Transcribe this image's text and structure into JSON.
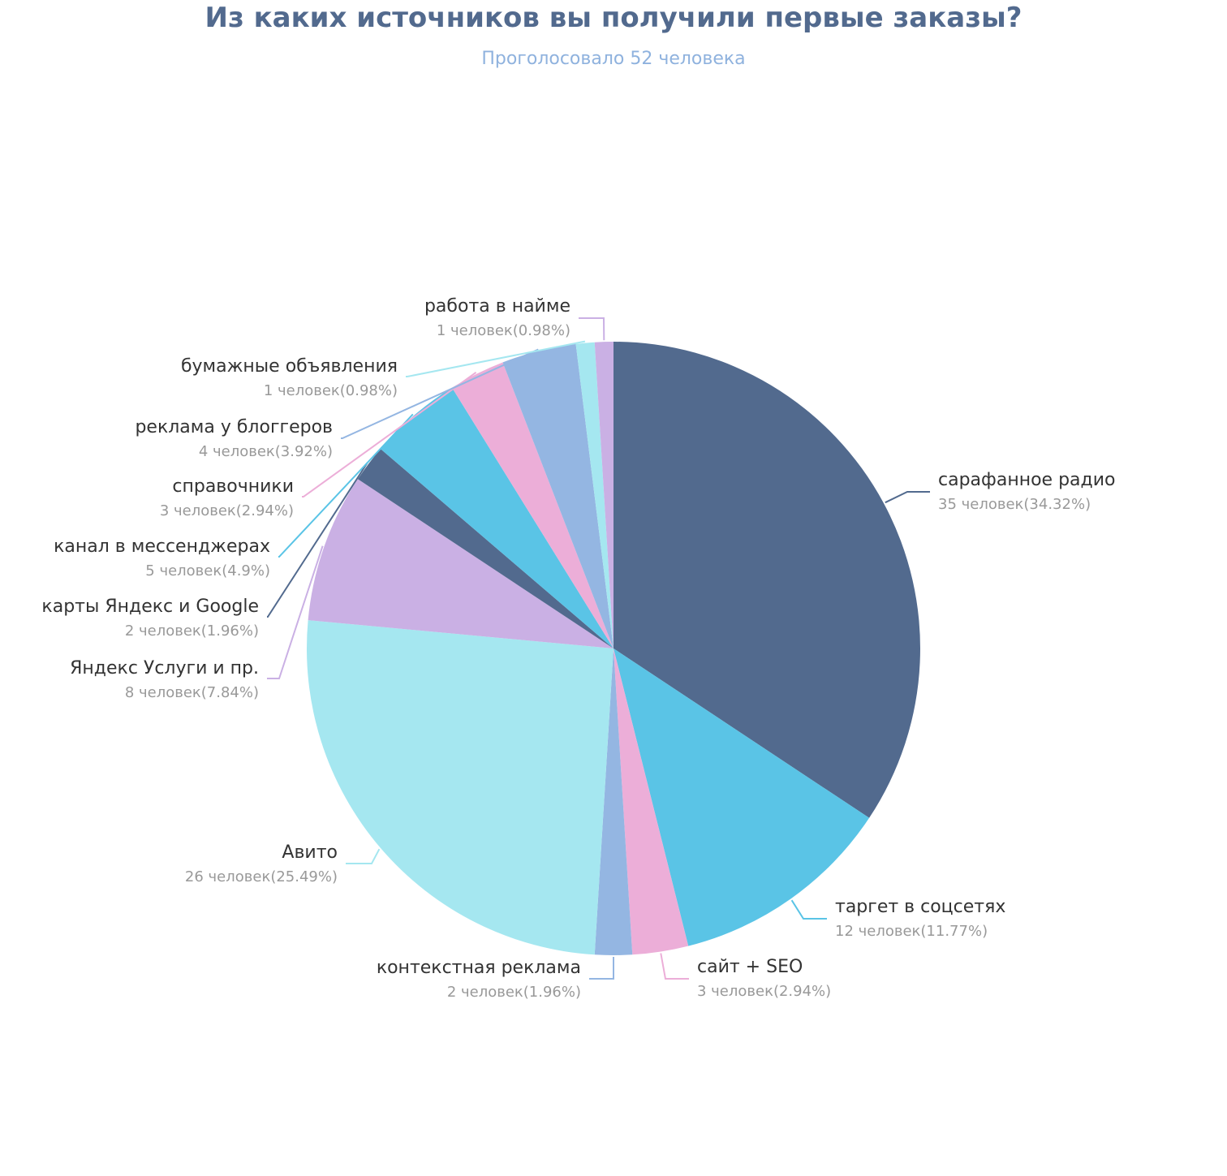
{
  "chart_data": {
    "type": "pie",
    "title": "Из каких источников вы получили первые заказы?",
    "subtitle": "Проголосовало 52 человека",
    "slices": [
      {
        "name": "сарафанное радио",
        "value": 35,
        "label": "35 человек(34.32%)",
        "color": "#526a8e"
      },
      {
        "name": "таргет в соцсетях",
        "value": 12,
        "label": "12 человек(11.77%)",
        "color": "#5ac4e6"
      },
      {
        "name": "сайт + SEO",
        "value": 3,
        "label": "3 человек(2.94%)",
        "color": "#ecaed8"
      },
      {
        "name": "контекстная реклама",
        "value": 2,
        "label": "2 человек(1.96%)",
        "color": "#94b6e2"
      },
      {
        "name": "Авито",
        "value": 26,
        "label": "26 человек(25.49%)",
        "color": "#a5e7f0"
      },
      {
        "name": "Яндекс Услуги и пр.",
        "value": 8,
        "label": "8 человек(7.84%)",
        "color": "#cab0e4"
      },
      {
        "name": "карты Яндекс и Google",
        "value": 2,
        "label": "2 человек(1.96%)",
        "color": "#526a8e"
      },
      {
        "name": "канал в мессенджерах",
        "value": 5,
        "label": "5 человек(4.9%)",
        "color": "#5ac4e6"
      },
      {
        "name": "справочники",
        "value": 3,
        "label": "3 человек(2.94%)",
        "color": "#ecaed8"
      },
      {
        "name": "реклама у блоггеров",
        "value": 4,
        "label": "4 человек(3.92%)",
        "color": "#94b6e2"
      },
      {
        "name": "бумажные объявления",
        "value": 1,
        "label": "1 человек(0.98%)",
        "color": "#a5e7f0"
      },
      {
        "name": "работа в найме",
        "value": 1,
        "label": "1 человек(0.98%)",
        "color": "#cab0e4"
      }
    ]
  }
}
